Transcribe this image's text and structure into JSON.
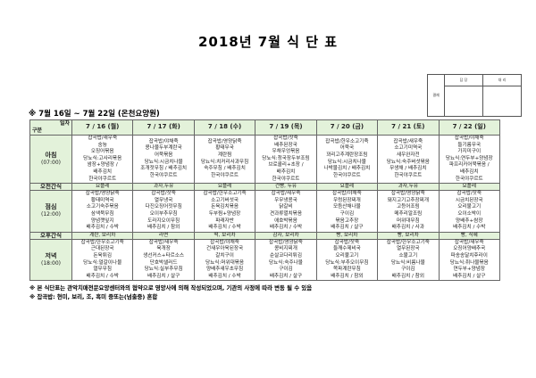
{
  "title": "2018년 7월 식 단 표",
  "approval": {
    "side": "결재",
    "col1": "담 당",
    "col2": "대 리"
  },
  "subtitle": "※ 7월 16일 ~ 7월 22일 (온천요양원)",
  "corner": {
    "top": "일자",
    "bottom": "구분"
  },
  "days": [
    "7 / 16 (월)",
    "7 / 17 (화)",
    "7 / 18 (수)",
    "7 / 19 (목)",
    "7 / 20 (금)",
    "7 / 21 (토)",
    "7 / 22 (일)"
  ],
  "rows": [
    {
      "label": "아침",
      "time": "(07:00)",
      "type": "meal",
      "cells": [
        [
          "잡곡밥/새우죽",
          "숭늉",
          "오징어볶음",
          "당뇨식:고사리볶음",
          "쌈장+양념장 /",
          "배추김치",
          "한국야쿠르트"
        ],
        [
          "잡곡밥/야채죽",
          "콩나물두부계란국",
          "어묵볶음",
          "당뇨식:시금치나물",
          "조개젓무침 / 배추김치",
          "한국야쿠르트"
        ],
        [
          "잡곡밥/영양닭죽",
          "황태무국",
          "계란찜",
          "당뇨식:치커리사과무침",
          "숙주무침 / 배추김치",
          "한국야쿠르트"
        ],
        [
          "잡곡밥/잣죽",
          "배추된장국",
          "우채우엉볶음",
          "당뇨식:청국장두부조림",
          "브로콜리+초장 /",
          "배추김치",
          "한국야쿠르트"
        ],
        [
          "잡곡밥/한우소고기죽",
          "어묵국",
          "꽈리고추계란장조림",
          "당뇨식:시금치나물",
          "나박물김치 / 배추김치",
          "한국야쿠르트"
        ],
        [
          "잡곡밥/새우죽",
          "소고기미역국",
          "새우완자전",
          "당뇨식:숙주버섯볶음",
          "무생채 / 배추김치",
          "한국야쿠르트"
        ],
        [
          "잡곡밥/야채죽",
          "들기름무국",
          "가지미구이",
          "당뇨식:연두부+양념장",
          "파프리카어묵볶음 /",
          "배추김치",
          "한국야쿠르트"
        ]
      ]
    },
    {
      "label": "오전간식",
      "type": "snack",
      "cells": [
        "요플레",
        "과자,두유",
        "요플레",
        "건빵, 두유",
        "요플레",
        "과자,두유",
        "요플레"
      ]
    },
    {
      "label": "점심",
      "time": "(12:00)",
      "type": "meal",
      "cells": [
        [
          "잡곡밥/영양닭죽",
          "황태미역국",
          "소고기숙주볶음",
          "삼색묵무침",
          "양념깻잎지",
          "배추김치 / 수박"
        ],
        [
          "잡곡밥/잣죽",
          "열무냉국",
          "다진오징어젓무침",
          "오이부추무침",
          "도라지오이무침",
          "배추김치 / 참외"
        ],
        [
          "잡곡밥/한우소고기죽",
          "소고기버섯국",
          "돈육김치볶음",
          "두부찜+양념장",
          "파래자반",
          "배추김치 / 수박"
        ],
        [
          "잡곡밥/새우죽",
          "우무냉콩국",
          "닭갈비",
          "견과류멸치볶음",
          "애호박볶음",
          "배추김치 / 수박"
        ],
        [
          "잡곡밥/야채죽",
          "우렁된장찌개",
          "모듬산채나물",
          "구이김",
          "볶음고추장",
          "배추김치 / 살구"
        ],
        [
          "잡곡밥/영양닭죽",
          "돼지고기고추장찌개",
          "고등어조림",
          "메추리알조림",
          "머위대무침",
          "배추김치 / 사과"
        ],
        [
          "잡곡밥/잣죽",
          "시금치된장국",
          "오리불고기",
          "오이소박이",
          "양배추+쌈장",
          "배추김치 / 수박"
        ]
      ]
    },
    {
      "label": "오후간식",
      "type": "snack",
      "cells": [
        "계란, 보리차",
        "라면",
        "떡, 보리차",
        "감자, 보리차",
        "빵, 보리차",
        "빵, 보리차",
        "빵, 식혜"
      ]
    },
    {
      "label": "저녁",
      "time": "(18:00)",
      "type": "meal",
      "cells": [
        [
          "잡곡밥/한우소고기죽",
          "근대된장국",
          "돈육튀김",
          "당뇨식:얼갈이나물",
          "열무무침",
          "배추김치 / 수박"
        ],
        [
          "잡곡밥/새우죽",
          "육개장",
          "생선커스+타르소스",
          "단호박샐러드",
          "당뇨식:실부추무침",
          "배추김치 / 살구"
        ],
        [
          "잡곡밥/야채죽",
          "건새우아욱된장국",
          "갈치구이",
          "당뇨식:머위대볶음",
          "양배추새우초무침",
          "배추김치 / 수박"
        ],
        [
          "잡곡밥/영양닭죽",
          "콩비지찌개",
          "순살코다리튀김",
          "당뇨식:숙주나물",
          "구이김",
          "배추김치 / 살구"
        ],
        [
          "잡곡밥/잣죽",
          "들깨수제비국",
          "오리불고기",
          "당뇨식:부추오이무침",
          "쪽파계란무침",
          "배추김치 / 참외"
        ],
        [
          "잡곡밥/한우소고기죽",
          "열무된장국",
          "소불고기",
          "당뇨식:비름나물",
          "구이김",
          "배추김치 / 참외"
        ],
        [
          "잡곡밥/새우죽",
          "오징어양배추국",
          "파송송달치후라이",
          "당뇨식:취나물볶음",
          "연두부+양념장",
          "배추김치 / 살구"
        ]
      ]
    }
  ],
  "notes": [
    "※ 본 식단표는 관악치매전문요양센터와의 협약으로 영양사에 의해 작성되었으며, 기관의 사정에 따라 변동 될 수 있음",
    "※ 잡곡밥: 현미, 보리, 조, 흑미 중또는(넘출중) 혼합"
  ],
  "colors": {
    "header_bg": "#e3f2da",
    "border": "#666666"
  }
}
